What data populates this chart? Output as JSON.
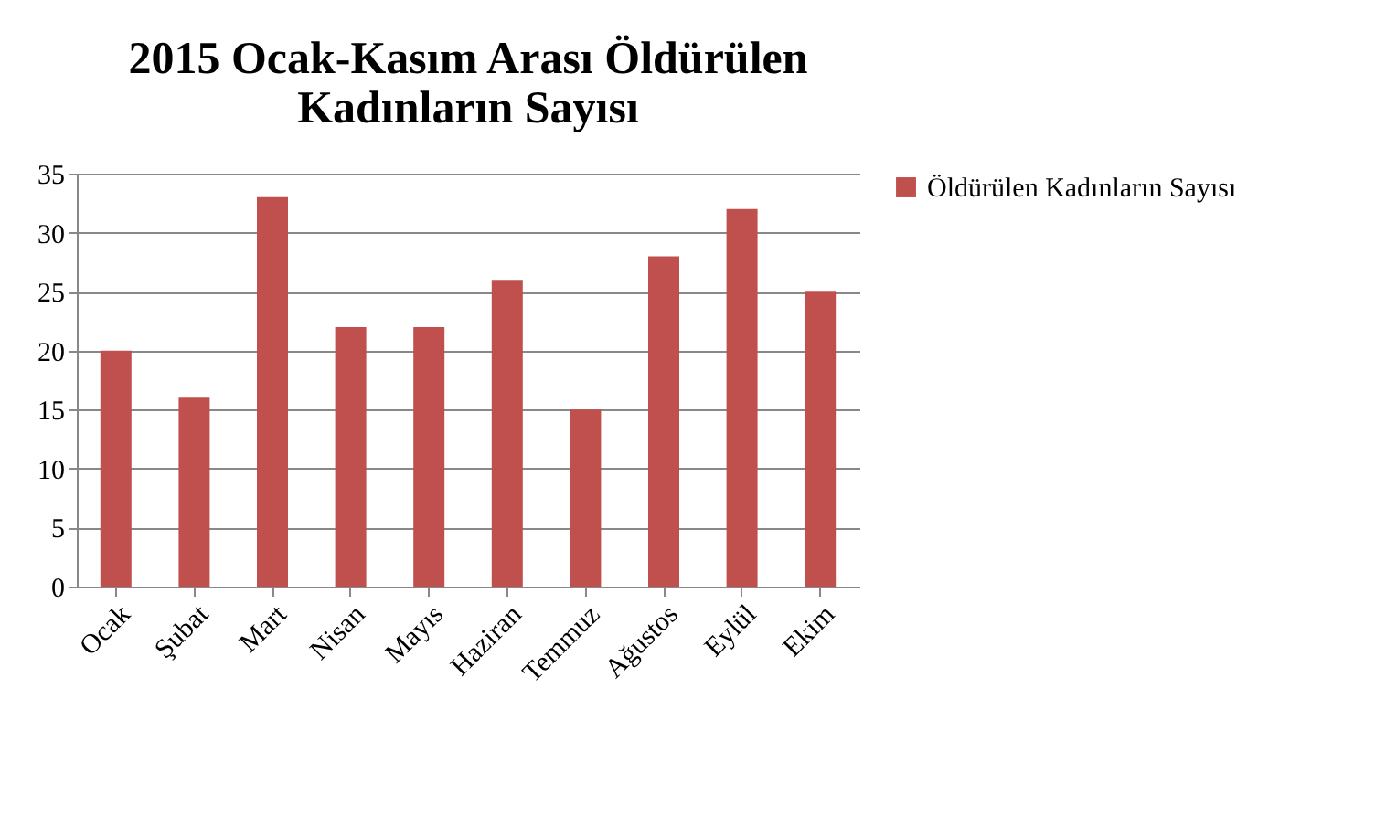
{
  "chart_data": {
    "type": "bar",
    "title": "2015 Ocak-Kasım Arası Öldürülen Kadınların Sayısı",
    "categories": [
      "Ocak",
      "Şubat",
      "Mart",
      "Nisan",
      "Mayıs",
      "Haziran",
      "Temmuz",
      "Ağustos",
      "Eylül",
      "Ekim"
    ],
    "series": [
      {
        "name": "Öldürülen Kadınların Sayısı",
        "color": "#c0504d",
        "values": [
          20,
          16,
          33,
          22,
          22,
          26,
          15,
          28,
          32,
          25
        ]
      }
    ],
    "ylim": [
      0,
      35
    ],
    "yticks": [
      0,
      5,
      10,
      15,
      20,
      25,
      30,
      35
    ],
    "grid": "y",
    "legend": "right"
  }
}
